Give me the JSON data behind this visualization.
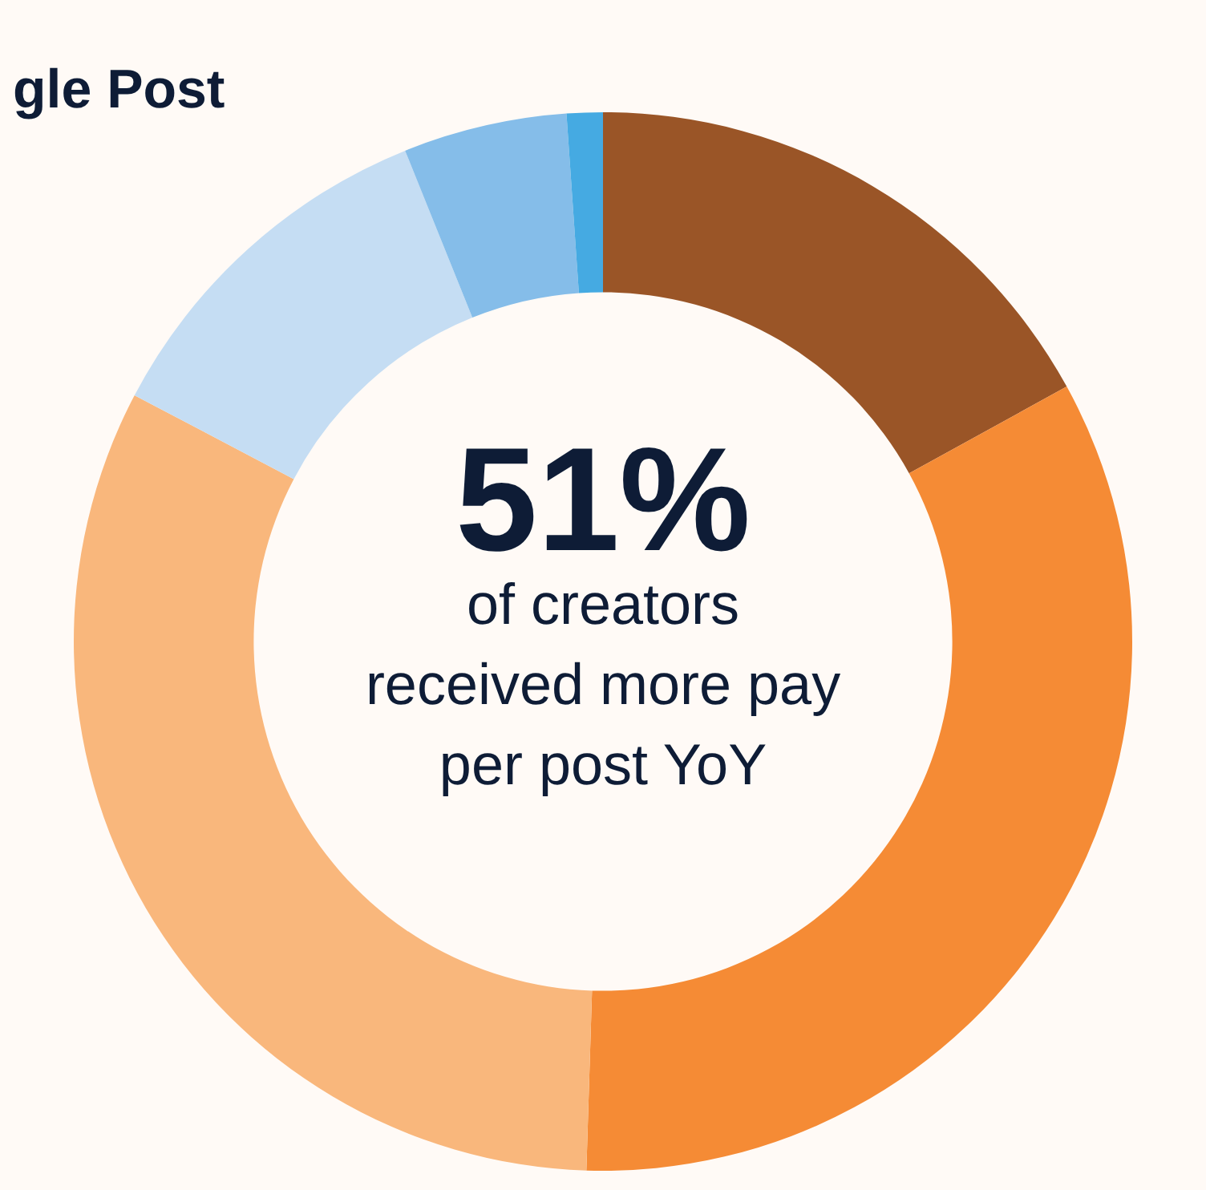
{
  "chart_data": {
    "type": "donut",
    "title": "gle Post",
    "categories": [
      null,
      null,
      null,
      null,
      null,
      null
    ],
    "values": [
      17,
      33.5,
      32.2,
      11.2,
      5,
      1.1
    ],
    "colors": [
      "#9a5527",
      "#f58b35",
      "#f9b77c",
      "#c5ddf3",
      "#85bde9",
      "#45aae2"
    ],
    "annotations": [
      "51%",
      "of creators",
      "received more pay",
      "per post YoY"
    ],
    "legend": false
  }
}
